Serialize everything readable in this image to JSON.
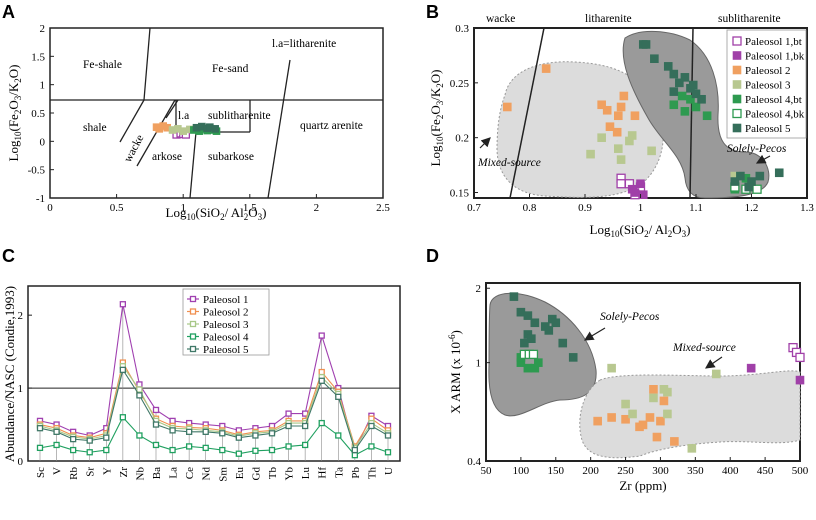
{
  "panels": {
    "A": {
      "letter": "A",
      "xlabel": "Log10(SiO2/ Al2O3)",
      "ylabel": "Log10(Fe2O3/K2O)",
      "xticks": [
        "0",
        "0.5",
        "1",
        "1.5",
        "2",
        "2.5"
      ],
      "yticks": [
        "-1",
        "-0.5",
        "0",
        "0.5",
        "1",
        "1.5",
        "2"
      ],
      "fields": [
        "Fe-shale",
        "Fe-sand",
        "l.a=litharenite",
        "shale",
        "l.a",
        "sublitharenite",
        "wacke",
        "quartz arenite",
        "arkose",
        "subarkose"
      ]
    },
    "B": {
      "letter": "B",
      "xlabel": "Log10(SiO2/ Al2O3)",
      "ylabel": "Log10(Fe2O3/K2O)",
      "xticks": [
        "0.7",
        "0.8",
        "0.9",
        "1",
        "1.1",
        "1.2",
        "1.3"
      ],
      "yticks": [
        "0.15",
        "0.2",
        "0.25",
        "0.3"
      ],
      "fields": [
        "wacke",
        "litharenite",
        "sublitharenite"
      ],
      "annotations": [
        "Mixed-source",
        "Solely-Pecos"
      ],
      "legend": [
        "Paleosol 1,bt",
        "Paleosol 1,bk",
        "Paleosol 2",
        "Paleosol 3",
        "Paleosol 4,bt",
        "Paleosol 4,bk",
        "Paleosol 5"
      ]
    },
    "C": {
      "letter": "C",
      "ylabel": "Abundance/NASC (Condie,1993)",
      "yticks": [
        "0",
        "1",
        "2"
      ],
      "legend": [
        "Paleosol 1",
        "Paleosol 2",
        "Paleosol 3",
        "Paleosol 4",
        "Paleosol 5"
      ]
    },
    "D": {
      "letter": "D",
      "xlabel": "Zr (ppm)",
      "ylabel": "X ARM (x 10-6)",
      "xticks": [
        "50",
        "100",
        "150",
        "200",
        "250",
        "300",
        "350",
        "400",
        "450",
        "500"
      ],
      "yticks": [
        "0.4",
        "1",
        "2"
      ],
      "annotations": [
        "Solely-Pecos",
        "Mixed-source"
      ]
    }
  },
  "colors": {
    "p1bt": "#a040a8",
    "p1bk": "#a040a8",
    "p2": "#f0a060",
    "p3": "#b8c890",
    "p4bt": "#2e9a50",
    "p4bk": "#2e9a50",
    "p5": "#356e5a",
    "c_p1": "#a040b0",
    "c_p2": "#f09050",
    "c_p3": "#a8c888",
    "c_p4": "#20a060",
    "c_p5": "#407868"
  },
  "chart_data": [
    {
      "panel": "A",
      "type": "scatter",
      "title": "",
      "xlabel": "Log10(SiO2/ Al2O3)",
      "ylabel": "Log10(Fe2O3/K2O)",
      "xlim": [
        0,
        2.5
      ],
      "ylim": [
        -1,
        2
      ],
      "series": [
        {
          "name": "Paleosol 2",
          "key": "p2",
          "fill": true,
          "points": [
            [
              0.8,
              0.25
            ],
            [
              0.82,
              0.22
            ],
            [
              0.85,
              0.27
            ],
            [
              0.88,
              0.24
            ]
          ]
        },
        {
          "name": "Paleosol 1",
          "key": "p1bt",
          "fill": false,
          "points": [
            [
              0.95,
              0.12
            ],
            [
              0.98,
              0.14
            ],
            [
              1.0,
              0.13
            ],
            [
              1.02,
              0.12
            ]
          ]
        },
        {
          "name": "Paleosol 3",
          "key": "p3",
          "fill": true,
          "points": [
            [
              0.92,
              0.2
            ],
            [
              0.96,
              0.22
            ],
            [
              1.0,
              0.18
            ],
            [
              1.05,
              0.21
            ]
          ]
        },
        {
          "name": "Paleosol 4",
          "key": "p4bt",
          "fill": true,
          "points": [
            [
              1.08,
              0.2
            ],
            [
              1.12,
              0.18
            ],
            [
              1.15,
              0.22
            ],
            [
              1.18,
              0.19
            ],
            [
              1.22,
              0.2
            ],
            [
              1.25,
              0.18
            ]
          ]
        },
        {
          "name": "Paleosol 5",
          "key": "p5",
          "fill": true,
          "points": [
            [
              1.1,
              0.24
            ],
            [
              1.14,
              0.26
            ],
            [
              1.18,
              0.23
            ],
            [
              1.2,
              0.25
            ],
            [
              1.24,
              0.22
            ]
          ]
        }
      ]
    },
    {
      "panel": "B",
      "type": "scatter",
      "title": "",
      "xlabel": "Log10(SiO2/ Al2O3)",
      "ylabel": "Log10(Fe2O3/K2O)",
      "xlim": [
        0.7,
        1.3
      ],
      "ylim": [
        0.145,
        0.3
      ],
      "legend_position": "right",
      "series": [
        {
          "name": "Paleosol 1,bt",
          "key": "p1bt",
          "fill": false,
          "points": [
            [
              0.965,
              0.163
            ],
            [
              0.98,
              0.158
            ],
            [
              1.0,
              0.155
            ],
            [
              0.965,
              0.158
            ],
            [
              0.99,
              0.148
            ]
          ]
        },
        {
          "name": "Paleosol 1,bk",
          "key": "p1bk",
          "fill": true,
          "points": [
            [
              0.99,
              0.15
            ],
            [
              1.0,
              0.158
            ],
            [
              0.985,
              0.153
            ],
            [
              1.005,
              0.148
            ]
          ]
        },
        {
          "name": "Paleosol 2",
          "key": "p2",
          "fill": true,
          "points": [
            [
              0.76,
              0.228
            ],
            [
              0.83,
              0.263
            ],
            [
              0.93,
              0.23
            ],
            [
              0.945,
              0.21
            ],
            [
              0.96,
              0.22
            ],
            [
              0.97,
              0.238
            ],
            [
              0.99,
              0.22
            ],
            [
              0.94,
              0.225
            ],
            [
              0.965,
              0.228
            ],
            [
              0.958,
              0.205
            ]
          ]
        },
        {
          "name": "Paleosol 3",
          "key": "p3",
          "fill": true,
          "points": [
            [
              0.91,
              0.185
            ],
            [
              0.93,
              0.2
            ],
            [
              0.96,
              0.19
            ],
            [
              0.985,
              0.202
            ],
            [
              0.965,
              0.18
            ],
            [
              1.02,
              0.188
            ],
            [
              1.17,
              0.165
            ],
            [
              1.19,
              0.163
            ],
            [
              0.98,
              0.197
            ]
          ]
        },
        {
          "name": "Paleosol 4,bt",
          "key": "p4bt",
          "fill": true,
          "points": [
            [
              1.06,
              0.23
            ],
            [
              1.075,
              0.238
            ],
            [
              1.09,
              0.235
            ],
            [
              1.1,
              0.228
            ],
            [
              1.08,
              0.224
            ],
            [
              1.12,
              0.22
            ],
            [
              1.17,
              0.153
            ],
            [
              1.19,
              0.163
            ]
          ]
        },
        {
          "name": "Paleosol 4,bk",
          "key": "p4bk",
          "fill": false,
          "points": [
            [
              1.17,
              0.155
            ],
            [
              1.19,
              0.153
            ],
            [
              1.21,
              0.153
            ]
          ]
        },
        {
          "name": "Paleosol 5",
          "key": "p5",
          "fill": true,
          "points": [
            [
              1.005,
              0.285
            ],
            [
              1.01,
              0.285
            ],
            [
              1.025,
              0.272
            ],
            [
              1.05,
              0.265
            ],
            [
              1.06,
              0.258
            ],
            [
              1.07,
              0.25
            ],
            [
              1.08,
              0.255
            ],
            [
              1.09,
              0.245
            ],
            [
              1.095,
              0.248
            ],
            [
              1.1,
              0.24
            ],
            [
              1.11,
              0.235
            ],
            [
              1.06,
              0.242
            ],
            [
              1.17,
              0.16
            ],
            [
              1.18,
              0.165
            ],
            [
              1.2,
              0.16
            ],
            [
              1.215,
              0.165
            ],
            [
              1.25,
              0.168
            ],
            [
              1.195,
              0.155
            ]
          ]
        }
      ]
    },
    {
      "panel": "C",
      "type": "line",
      "title": "",
      "ylabel": "Abundance/NASC (Condie,1993)",
      "ylim": [
        0,
        2.4
      ],
      "categories": [
        "Sc",
        "V",
        "Rb",
        "Sr",
        "Y",
        "Zr",
        "Nb",
        "Ba",
        "La",
        "Ce",
        "Nd",
        "Sm",
        "Eu",
        "Gd",
        "Tb",
        "Yb",
        "Lu",
        "Hf",
        "Ta",
        "Pb",
        "Th",
        "U"
      ],
      "series": [
        {
          "name": "Paleosol 1",
          "key": "c_p1",
          "values": [
            0.55,
            0.5,
            0.4,
            0.35,
            0.45,
            2.15,
            1.05,
            0.7,
            0.55,
            0.52,
            0.5,
            0.48,
            0.42,
            0.45,
            0.48,
            0.65,
            0.65,
            1.72,
            1.0,
            0.15,
            0.62,
            0.48
          ]
        },
        {
          "name": "Paleosol 2",
          "key": "c_p2",
          "values": [
            0.5,
            0.45,
            0.35,
            0.32,
            0.38,
            1.35,
            0.95,
            0.58,
            0.48,
            0.46,
            0.45,
            0.42,
            0.36,
            0.4,
            0.42,
            0.55,
            0.55,
            1.22,
            0.95,
            0.2,
            0.58,
            0.42
          ]
        },
        {
          "name": "Paleosol 3",
          "key": "c_p3",
          "values": [
            0.48,
            0.42,
            0.33,
            0.3,
            0.35,
            1.3,
            0.98,
            0.55,
            0.45,
            0.44,
            0.42,
            0.4,
            0.34,
            0.38,
            0.4,
            0.52,
            0.52,
            1.15,
            0.92,
            0.18,
            0.52,
            0.38
          ]
        },
        {
          "name": "Paleosol 4",
          "key": "c_p4",
          "values": [
            0.18,
            0.22,
            0.15,
            0.12,
            0.15,
            0.6,
            0.35,
            0.22,
            0.15,
            0.2,
            0.18,
            0.15,
            0.1,
            0.14,
            0.15,
            0.2,
            0.22,
            0.52,
            0.35,
            0.08,
            0.2,
            0.12
          ]
        },
        {
          "name": "Paleosol 5",
          "key": "c_p5",
          "values": [
            0.45,
            0.4,
            0.3,
            0.28,
            0.32,
            1.25,
            0.9,
            0.5,
            0.42,
            0.4,
            0.4,
            0.38,
            0.32,
            0.35,
            0.38,
            0.48,
            0.48,
            1.1,
            0.88,
            0.15,
            0.48,
            0.35
          ]
        }
      ]
    },
    {
      "panel": "D",
      "type": "scatter",
      "title": "",
      "xlabel": "Zr (ppm)",
      "ylabel": "X ARM (x 10-6)",
      "xlim": [
        50,
        500
      ],
      "ylim_log": [
        0.4,
        2.1
      ],
      "series": [
        {
          "name": "Paleosol 5",
          "key": "p5",
          "fill": true,
          "points": [
            [
              90,
              1.85
            ],
            [
              100,
              1.6
            ],
            [
              110,
              1.55
            ],
            [
              120,
              1.45
            ],
            [
              135,
              1.4
            ],
            [
              145,
              1.5
            ],
            [
              150,
              1.45
            ],
            [
              140,
              1.35
            ],
            [
              110,
              1.3
            ],
            [
              160,
              1.2
            ],
            [
              175,
              1.05
            ],
            [
              105,
              1.2
            ],
            [
              115,
              1.25
            ]
          ]
        },
        {
          "name": "Paleosol 4,bt",
          "key": "p4bt",
          "fill": true,
          "points": [
            [
              100,
              1.0
            ],
            [
              110,
              0.95
            ],
            [
              120,
              0.95
            ],
            [
              125,
              1.0
            ],
            [
              100,
              1.05
            ]
          ]
        },
        {
          "name": "Paleosol 4,bk",
          "key": "p4bk",
          "fill": false,
          "points": [
            [
              105,
              1.08
            ],
            [
              112,
              1.08
            ],
            [
              118,
              1.08
            ]
          ]
        },
        {
          "name": "Paleosol 2",
          "key": "p2",
          "fill": true,
          "points": [
            [
              210,
              0.58
            ],
            [
              230,
              0.6
            ],
            [
              250,
              0.59
            ],
            [
              270,
              0.55
            ],
            [
              275,
              0.56
            ],
            [
              285,
              0.6
            ],
            [
              300,
              0.58
            ],
            [
              305,
              0.7
            ],
            [
              320,
              0.48
            ],
            [
              290,
              0.78
            ],
            [
              295,
              0.5
            ]
          ]
        },
        {
          "name": "Paleosol 3",
          "key": "p3",
          "fill": true,
          "points": [
            [
              230,
              0.95
            ],
            [
              250,
              0.68
            ],
            [
              260,
              0.62
            ],
            [
              290,
              0.72
            ],
            [
              305,
              0.78
            ],
            [
              310,
              0.76
            ],
            [
              345,
              0.45
            ],
            [
              310,
              0.62
            ],
            [
              380,
              0.9
            ]
          ]
        },
        {
          "name": "Paleosol 1,bt",
          "key": "p1bt",
          "fill": false,
          "points": [
            [
              490,
              1.15
            ],
            [
              495,
              1.1
            ],
            [
              500,
              1.05
            ]
          ]
        },
        {
          "name": "Paleosol 1,bk",
          "key": "p1bk",
          "fill": true,
          "points": [
            [
              430,
              0.95
            ],
            [
              500,
              0.85
            ]
          ]
        }
      ]
    }
  ]
}
